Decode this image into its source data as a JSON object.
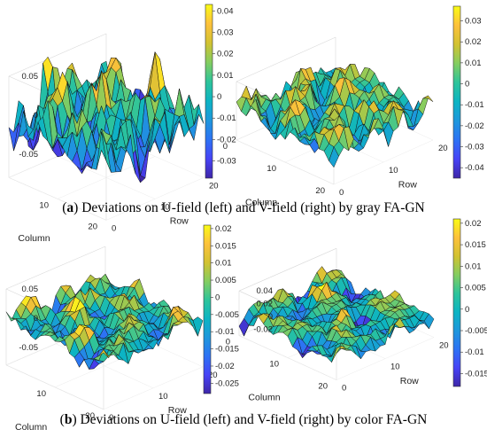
{
  "figure": {
    "caption_a": {
      "label": "a",
      "text": ") Deviations on U-field (left) and V-field (right) by gray FA-GN"
    },
    "caption_b": {
      "label": "b",
      "text": ") Deviations on U-field (left) and V-field (right) by color FA-GN"
    }
  },
  "colormap": [
    "#3e26a8",
    "#4743f6",
    "#2d72f4",
    "#1e97dc",
    "#0cb4c3",
    "#2ec49a",
    "#84cd60",
    "#d2c231",
    "#fdc13c",
    "#f9fb15"
  ],
  "chart_data": [
    {
      "type": "surface",
      "panel": "a-left",
      "field": "U",
      "method": "gray FA-GN",
      "xlabel": "Column",
      "ylabel": "Row",
      "column_ticks": [
        "0",
        "10",
        "20"
      ],
      "row_ticks": [
        "0",
        "10",
        "20"
      ],
      "zticks": [
        "0.05",
        "0",
        "-0.05"
      ],
      "zlim": [
        -0.08,
        0.05
      ],
      "colorbar": {
        "ticks": [
          "0.04",
          "0.03",
          "0.02",
          "0.01",
          "0",
          "-0.01",
          "-0.02",
          "-0.03"
        ],
        "clim": [
          -0.038,
          0.043
        ]
      },
      "surface_seed": 11,
      "surface_amplitude": 0.045,
      "surface_offset": -0.005,
      "grid_size": 21
    },
    {
      "type": "surface",
      "panel": "a-right",
      "field": "V",
      "method": "gray FA-GN",
      "xlabel": "Column",
      "ylabel": "Row",
      "column_ticks": [
        "0",
        "10",
        "20"
      ],
      "row_ticks": [
        "0",
        "10",
        "20"
      ],
      "zticks": [],
      "zlim": [
        -0.06,
        0.05
      ],
      "colorbar": {
        "ticks": [
          "0.03",
          "0.02",
          "0.01",
          "0",
          "-0.01",
          "-0.02",
          "-0.03",
          "-0.04"
        ],
        "clim": [
          -0.045,
          0.037
        ]
      },
      "surface_seed": 23,
      "surface_amplitude": 0.032,
      "surface_offset": 0.0,
      "grid_size": 21
    },
    {
      "type": "surface",
      "panel": "b-left",
      "field": "U",
      "method": "color FA-GN",
      "xlabel": "Column",
      "ylabel": "Row",
      "column_ticks": [
        "0",
        "10",
        "20"
      ],
      "row_ticks": [
        "0",
        "10",
        "20"
      ],
      "zticks": [
        "0.05",
        "0",
        "-0.05"
      ],
      "zlim": [
        -0.08,
        0.05
      ],
      "colorbar": {
        "ticks": [
          "0.02",
          "0.015",
          "0.01",
          "0.005",
          "0",
          "-0.005",
          "-0.01",
          "-0.015",
          "-0.02",
          "-0.025"
        ],
        "clim": [
          -0.028,
          0.021
        ]
      },
      "surface_seed": 37,
      "surface_amplitude": 0.022,
      "surface_offset": -0.003,
      "grid_size": 21
    },
    {
      "type": "surface",
      "panel": "b-right",
      "field": "V",
      "method": "color FA-GN",
      "xlabel": "Column",
      "ylabel": "Row",
      "column_ticks": [
        "0",
        "10",
        "20"
      ],
      "row_ticks": [
        "0",
        "10",
        "20"
      ],
      "zticks": [
        "0.04",
        "0.02",
        "0",
        "-0.02"
      ],
      "zlim": [
        -0.03,
        0.04
      ],
      "colorbar": {
        "ticks": [
          "0.02",
          "0.015",
          "0.01",
          "0.005",
          "0",
          "-0.005",
          "-0.01",
          "-0.015"
        ],
        "clim": [
          -0.018,
          0.021
        ]
      },
      "surface_seed": 53,
      "surface_amplitude": 0.017,
      "surface_offset": 0.001,
      "grid_size": 21
    }
  ]
}
